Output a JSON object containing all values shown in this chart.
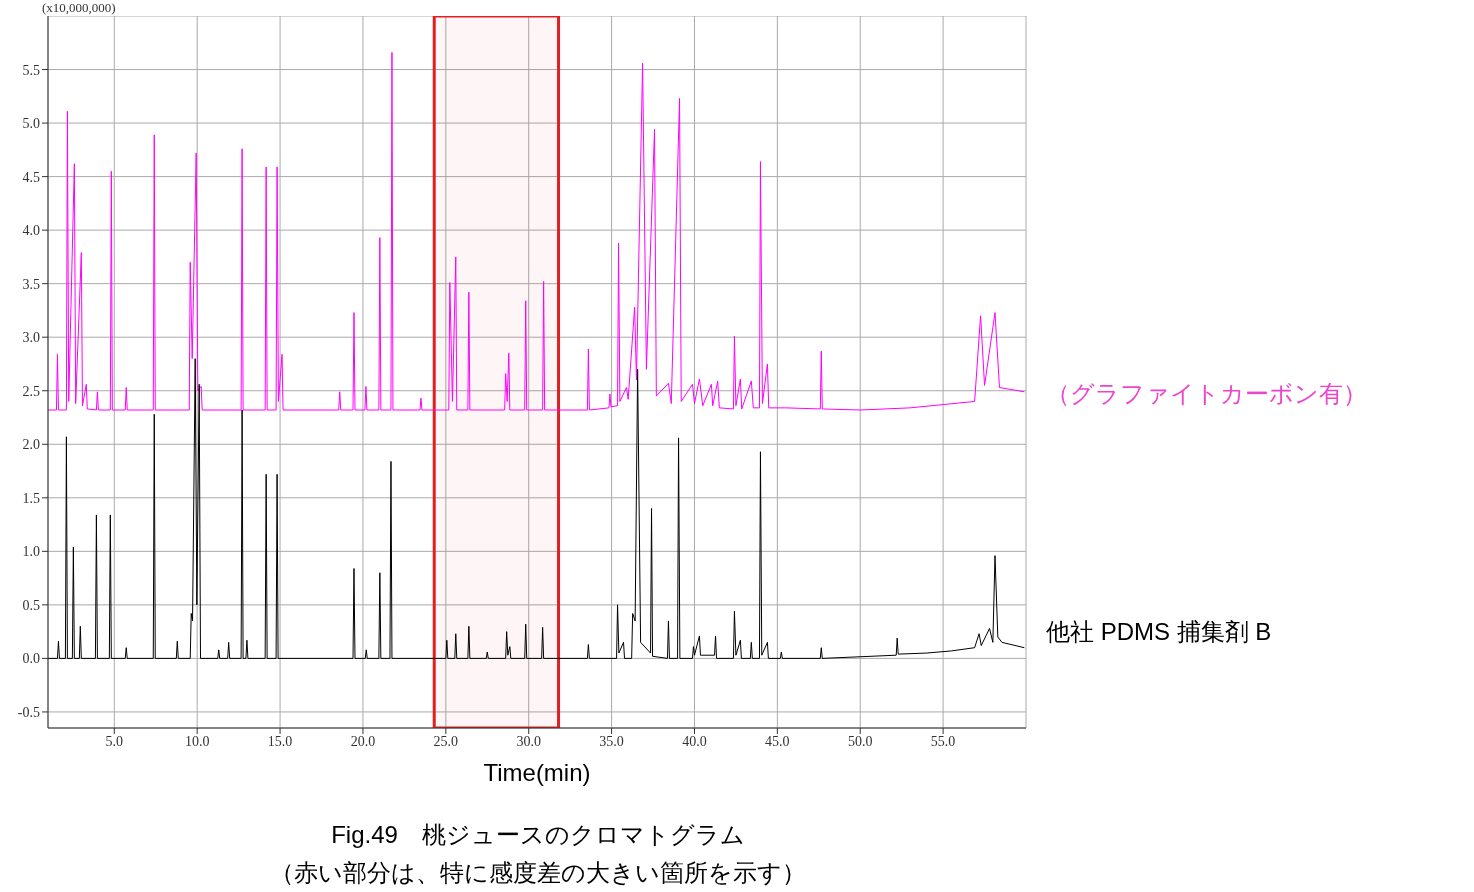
{
  "chart_data": {
    "type": "line",
    "xlabel": "Time(min)",
    "annotations": [
      "(x10,000,000)",
      "Fig.49　桃ジュースのクロマトグラム",
      "（赤い部分は、特に感度差の大きい箇所を示す）"
    ],
    "xlim": [
      1.0,
      60.0
    ],
    "ylim": [
      -0.65,
      6.0
    ],
    "xticks": [
      {
        "value": 5,
        "label": "5.0"
      },
      {
        "value": 10,
        "label": "10.0"
      },
      {
        "value": 15,
        "label": "15.0"
      },
      {
        "value": 20,
        "label": "20.0"
      },
      {
        "value": 25,
        "label": "25.0"
      },
      {
        "value": 30,
        "label": "30.0"
      },
      {
        "value": 35,
        "label": "35.0"
      },
      {
        "value": 40,
        "label": "40.0"
      },
      {
        "value": 45,
        "label": "45.0"
      },
      {
        "value": 50,
        "label": "50.0"
      },
      {
        "value": 55,
        "label": "55.0"
      }
    ],
    "yticks": [
      -0.5,
      {
        "value": 0,
        "label": "0.0"
      },
      0.5,
      {
        "value": 1,
        "label": "1.0"
      },
      1.5,
      {
        "value": 2,
        "label": "2.0"
      },
      2.5,
      {
        "value": 3,
        "label": "3.0"
      },
      3.5,
      {
        "value": 4,
        "label": "4.0"
      },
      4.5,
      {
        "value": 5,
        "label": "5.0"
      },
      5.5
    ],
    "grid": true,
    "marker": "none",
    "line_style": "solid",
    "bands": [
      {
        "axis": "x",
        "from": 24.3,
        "to": 31.8,
        "color": "#e02020"
      }
    ],
    "series": [
      {
        "name": "（グラファイトカーボン有）",
        "color": "#ff00ff",
        "x": [
          1.0,
          1.51,
          1.57,
          1.63,
          2.11,
          2.17,
          2.25,
          2.59,
          2.67,
          3.01,
          3.08,
          3.31,
          3.37,
          3.92,
          3.98,
          4.04,
          4.76,
          4.82,
          4.88,
          5.66,
          5.72,
          5.78,
          7.35,
          7.41,
          7.47,
          9.52,
          9.58,
          9.7,
          9.94,
          10.04,
          10.24,
          10.3,
          12.65,
          12.71,
          12.77,
          14.1,
          14.16,
          14.22,
          14.76,
          14.82,
          14.9,
          15.12,
          15.18,
          18.54,
          18.6,
          18.66,
          19.4,
          19.46,
          19.52,
          20.12,
          20.18,
          20.24,
          20.96,
          21.02,
          21.08,
          21.69,
          21.75,
          21.81,
          23.44,
          23.5,
          23.56,
          25.18,
          25.24,
          25.4,
          25.6,
          25.66,
          26.33,
          26.39,
          26.45,
          28.55,
          28.61,
          28.7,
          28.8,
          28.86,
          29.76,
          29.82,
          29.88,
          30.84,
          30.9,
          30.96,
          33.54,
          33.6,
          33.66,
          34.84,
          34.9,
          34.96,
          35.36,
          35.42,
          35.5,
          35.9,
          36.0,
          36.39,
          36.5,
          36.87,
          37.1,
          37.59,
          37.7,
          38.43,
          38.6,
          39.1,
          39.2,
          39.88,
          40.0,
          40.3,
          40.5,
          41.02,
          41.1,
          41.4,
          41.5,
          42.35,
          42.41,
          42.5,
          42.77,
          42.85,
          43.43,
          43.55,
          43.92,
          43.98,
          44.1,
          44.4,
          44.48,
          45.5,
          47.59,
          47.65,
          47.71,
          50,
          53,
          56.9,
          57.26,
          57.5,
          58.13,
          58.4,
          59.9
        ],
        "values": [
          2.32,
          2.32,
          2.84,
          2.32,
          2.32,
          5.11,
          2.4,
          4.62,
          2.38,
          3.79,
          2.36,
          2.56,
          2.33,
          2.32,
          2.49,
          2.32,
          2.32,
          4.55,
          2.32,
          2.32,
          2.53,
          2.32,
          2.32,
          4.89,
          2.32,
          2.32,
          3.7,
          2.8,
          4.72,
          2.5,
          2.54,
          2.32,
          2.32,
          4.76,
          2.32,
          2.32,
          4.59,
          2.32,
          2.32,
          4.59,
          2.4,
          2.84,
          2.32,
          2.32,
          2.49,
          2.32,
          2.32,
          3.23,
          2.32,
          2.32,
          2.54,
          2.32,
          2.32,
          3.93,
          2.32,
          2.32,
          5.66,
          2.32,
          2.32,
          2.43,
          2.32,
          2.32,
          3.51,
          2.4,
          3.75,
          2.32,
          2.32,
          3.42,
          2.32,
          2.32,
          2.66,
          2.4,
          2.85,
          2.32,
          2.32,
          3.34,
          2.32,
          2.32,
          3.52,
          2.32,
          2.32,
          2.89,
          2.32,
          2.34,
          2.47,
          2.35,
          2.36,
          3.88,
          2.4,
          2.53,
          2.42,
          3.28,
          2.6,
          5.56,
          2.7,
          4.94,
          2.45,
          2.57,
          2.38,
          5.23,
          2.4,
          2.56,
          2.38,
          2.61,
          2.36,
          2.56,
          2.36,
          2.59,
          2.34,
          2.33,
          3.01,
          2.36,
          2.61,
          2.33,
          2.59,
          2.34,
          2.34,
          4.64,
          2.38,
          2.75,
          2.34,
          2.34,
          2.33,
          2.87,
          2.33,
          2.32,
          2.34,
          2.4,
          3.2,
          2.55,
          3.23,
          2.53,
          2.49
        ]
      },
      {
        "name": "他社 PDMS 捕集剤 B",
        "color": "#000000",
        "x": [
          1.0,
          1.57,
          1.63,
          1.69,
          2.05,
          2.11,
          2.17,
          2.47,
          2.53,
          2.59,
          2.89,
          2.95,
          3.01,
          3.86,
          3.92,
          3.98,
          4.7,
          4.76,
          4.82,
          5.66,
          5.72,
          5.78,
          7.35,
          7.41,
          7.47,
          8.74,
          8.8,
          8.86,
          9.58,
          9.64,
          9.72,
          9.88,
          9.98,
          10.12,
          10.2,
          11.24,
          11.3,
          11.36,
          11.84,
          11.9,
          11.96,
          12.65,
          12.71,
          12.77,
          12.94,
          13.0,
          13.06,
          14.1,
          14.16,
          14.22,
          14.76,
          14.82,
          14.88,
          19.4,
          19.46,
          19.52,
          20.14,
          20.2,
          20.26,
          20.96,
          21.02,
          21.08,
          21.63,
          21.69,
          21.75,
          25.0,
          25.06,
          25.12,
          25.54,
          25.6,
          25.66,
          26.33,
          26.39,
          26.45,
          27.44,
          27.5,
          27.56,
          28.61,
          28.67,
          28.74,
          28.86,
          28.92,
          29.76,
          29.82,
          29.88,
          30.78,
          30.84,
          30.9,
          33.54,
          33.6,
          33.66,
          35.3,
          35.36,
          35.44,
          35.72,
          35.78,
          36.21,
          36.27,
          36.42,
          36.57,
          36.75,
          37.35,
          37.41,
          37.47,
          38.37,
          38.43,
          38.49,
          38.98,
          39.04,
          39.12,
          39.88,
          39.94,
          40.0,
          40.3,
          40.36,
          41.21,
          41.27,
          41.33,
          42.35,
          42.41,
          42.5,
          42.77,
          42.83,
          43.37,
          43.43,
          43.49,
          43.92,
          43.98,
          44.06,
          44.4,
          44.46,
          45.18,
          45.24,
          45.3,
          47.59,
          47.65,
          47.71,
          52.17,
          52.23,
          52.29,
          54,
          55.5,
          56.9,
          57.17,
          57.3,
          57.8,
          58.0,
          58.13,
          58.3,
          58.55,
          59.9
        ],
        "values": [
          0,
          0,
          0.16,
          0,
          0,
          2.07,
          0,
          0,
          1.04,
          0,
          0,
          0.3,
          0,
          0,
          1.34,
          0,
          0,
          1.34,
          0,
          0,
          0.1,
          0,
          0,
          2.28,
          0,
          0,
          0.16,
          0,
          0,
          0.42,
          0.35,
          2.8,
          0.5,
          2.56,
          0,
          0,
          0.08,
          0,
          0,
          0.15,
          0,
          0,
          2.32,
          0,
          0,
          0.17,
          0,
          0,
          1.72,
          0,
          0,
          1.72,
          0,
          0,
          0.84,
          0,
          0,
          0.08,
          0,
          0,
          0.8,
          0,
          0,
          1.84,
          0,
          0,
          0.17,
          0,
          0,
          0.23,
          0,
          0,
          0.3,
          0,
          0,
          0.06,
          0,
          0,
          0.25,
          0.03,
          0.11,
          0,
          0,
          0.32,
          0,
          0,
          0.29,
          0,
          0,
          0.13,
          0,
          0,
          0.5,
          0.05,
          0.15,
          0,
          0,
          0.42,
          0.35,
          2.7,
          0.15,
          0.05,
          1.4,
          0.02,
          0,
          0.35,
          0,
          0,
          2.06,
          0,
          0,
          0.11,
          0.03,
          0.21,
          0.03,
          0.03,
          0.21,
          0,
          0,
          0.44,
          0.03,
          0.17,
          0,
          0,
          0.15,
          0,
          0,
          1.93,
          0.03,
          0.15,
          0,
          0,
          0.06,
          0,
          0,
          0.1,
          0,
          0.03,
          0.19,
          0.04,
          0.05,
          0.07,
          0.1,
          0.23,
          0.12,
          0.28,
          0.15,
          0.96,
          0.2,
          0.15,
          0.1
        ]
      }
    ]
  }
}
